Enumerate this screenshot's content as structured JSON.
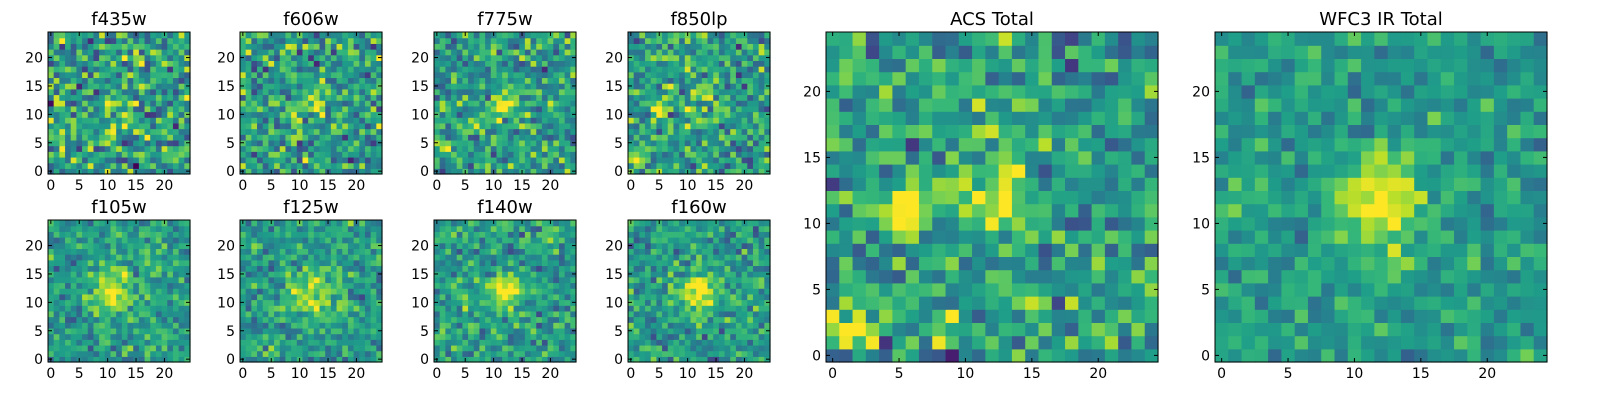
{
  "chart_data": [
    {
      "type": "heatmap",
      "title": "f435w",
      "xlim": [
        0,
        24
      ],
      "ylim": [
        0,
        24
      ],
      "xticks": [
        0,
        5,
        10,
        15,
        20
      ],
      "yticks": [
        0,
        5,
        10,
        15,
        20
      ],
      "grid": false,
      "colormap": "viridis",
      "features": [
        {
          "x": 12,
          "y": 12,
          "amp": 0.15,
          "sigma": 2.5
        }
      ],
      "noise": 0.25,
      "seed": 11
    },
    {
      "type": "heatmap",
      "title": "f606w",
      "xlim": [
        0,
        24
      ],
      "ylim": [
        0,
        24
      ],
      "xticks": [
        0,
        5,
        10,
        15,
        20
      ],
      "yticks": [
        0,
        5,
        10,
        15,
        20
      ],
      "grid": false,
      "colormap": "viridis",
      "features": [
        {
          "x": 12,
          "y": 12,
          "amp": 0.2,
          "sigma": 2.2
        }
      ],
      "noise": 0.22,
      "seed": 23
    },
    {
      "type": "heatmap",
      "title": "f775w",
      "xlim": [
        0,
        24
      ],
      "ylim": [
        0,
        24
      ],
      "xticks": [
        0,
        5,
        10,
        15,
        20
      ],
      "yticks": [
        0,
        5,
        10,
        15,
        20
      ],
      "grid": false,
      "colormap": "viridis",
      "features": [
        {
          "x": 12,
          "y": 12,
          "amp": 0.3,
          "sigma": 2
        },
        {
          "x": 2,
          "y": 4,
          "amp": 0.2,
          "sigma": 1.2
        }
      ],
      "noise": 0.2,
      "seed": 37
    },
    {
      "type": "heatmap",
      "title": "f850lp",
      "xlim": [
        0,
        24
      ],
      "ylim": [
        0,
        24
      ],
      "xticks": [
        0,
        5,
        10,
        15,
        20
      ],
      "yticks": [
        0,
        5,
        10,
        15,
        20
      ],
      "grid": false,
      "colormap": "viridis",
      "features": [
        {
          "x": 5,
          "y": 11,
          "amp": 0.6,
          "sigma": 0.9
        },
        {
          "x": 1,
          "y": 2,
          "amp": 0.6,
          "sigma": 1
        },
        {
          "x": 12,
          "y": 12,
          "amp": 0.2,
          "sigma": 2
        }
      ],
      "noise": 0.2,
      "seed": 41
    },
    {
      "type": "heatmap",
      "title": "f105w",
      "xlim": [
        0,
        24
      ],
      "ylim": [
        0,
        24
      ],
      "xticks": [
        0,
        5,
        10,
        15,
        20
      ],
      "yticks": [
        0,
        5,
        10,
        15,
        20
      ],
      "grid": false,
      "colormap": "viridis",
      "features": [
        {
          "x": 11,
          "y": 12,
          "amp": 0.45,
          "sigma": 2.5
        }
      ],
      "noise": 0.15,
      "seed": 53
    },
    {
      "type": "heatmap",
      "title": "f125w",
      "xlim": [
        0,
        24
      ],
      "ylim": [
        0,
        24
      ],
      "xticks": [
        0,
        5,
        10,
        15,
        20
      ],
      "yticks": [
        0,
        5,
        10,
        15,
        20
      ],
      "grid": false,
      "colormap": "viridis",
      "features": [
        {
          "x": 12,
          "y": 12,
          "amp": 0.35,
          "sigma": 3
        }
      ],
      "noise": 0.15,
      "seed": 67
    },
    {
      "type": "heatmap",
      "title": "f140w",
      "xlim": [
        0,
        24
      ],
      "ylim": [
        0,
        24
      ],
      "xticks": [
        0,
        5,
        10,
        15,
        20
      ],
      "yticks": [
        0,
        5,
        10,
        15,
        20
      ],
      "grid": false,
      "colormap": "viridis",
      "features": [
        {
          "x": 12,
          "y": 12,
          "amp": 0.45,
          "sigma": 2
        }
      ],
      "noise": 0.16,
      "seed": 71
    },
    {
      "type": "heatmap",
      "title": "f160w",
      "xlim": [
        0,
        24
      ],
      "ylim": [
        0,
        24
      ],
      "xticks": [
        0,
        5,
        10,
        15,
        20
      ],
      "yticks": [
        0,
        5,
        10,
        15,
        20
      ],
      "grid": false,
      "colormap": "viridis",
      "features": [
        {
          "x": 12,
          "y": 12,
          "amp": 0.5,
          "sigma": 2.2
        }
      ],
      "noise": 0.16,
      "seed": 83
    },
    {
      "type": "heatmap",
      "title": "ACS Total",
      "xlim": [
        0,
        24
      ],
      "ylim": [
        0,
        24
      ],
      "xticks": [
        0,
        5,
        10,
        15,
        20
      ],
      "yticks": [
        0,
        5,
        10,
        15,
        20
      ],
      "grid": false,
      "colormap": "viridis",
      "features": [
        {
          "x": 5,
          "y": 11,
          "amp": 0.55,
          "sigma": 1.2
        },
        {
          "x": 12,
          "y": 12,
          "amp": 0.5,
          "sigma": 1.6
        },
        {
          "x": 1,
          "y": 2,
          "amp": 0.6,
          "sigma": 1
        }
      ],
      "noise": 0.2,
      "seed": 97
    },
    {
      "type": "heatmap",
      "title": "WFC3 IR Total",
      "xlim": [
        0,
        24
      ],
      "ylim": [
        0,
        24
      ],
      "xticks": [
        0,
        5,
        10,
        15,
        20
      ],
      "yticks": [
        0,
        5,
        10,
        15,
        20
      ],
      "grid": false,
      "colormap": "viridis",
      "features": [
        {
          "x": 12,
          "y": 12,
          "amp": 0.5,
          "sigma": 2.2
        },
        {
          "x": 13,
          "y": 7,
          "amp": 0.2,
          "sigma": 1.2
        }
      ],
      "noise": 0.12,
      "seed": 101
    }
  ]
}
